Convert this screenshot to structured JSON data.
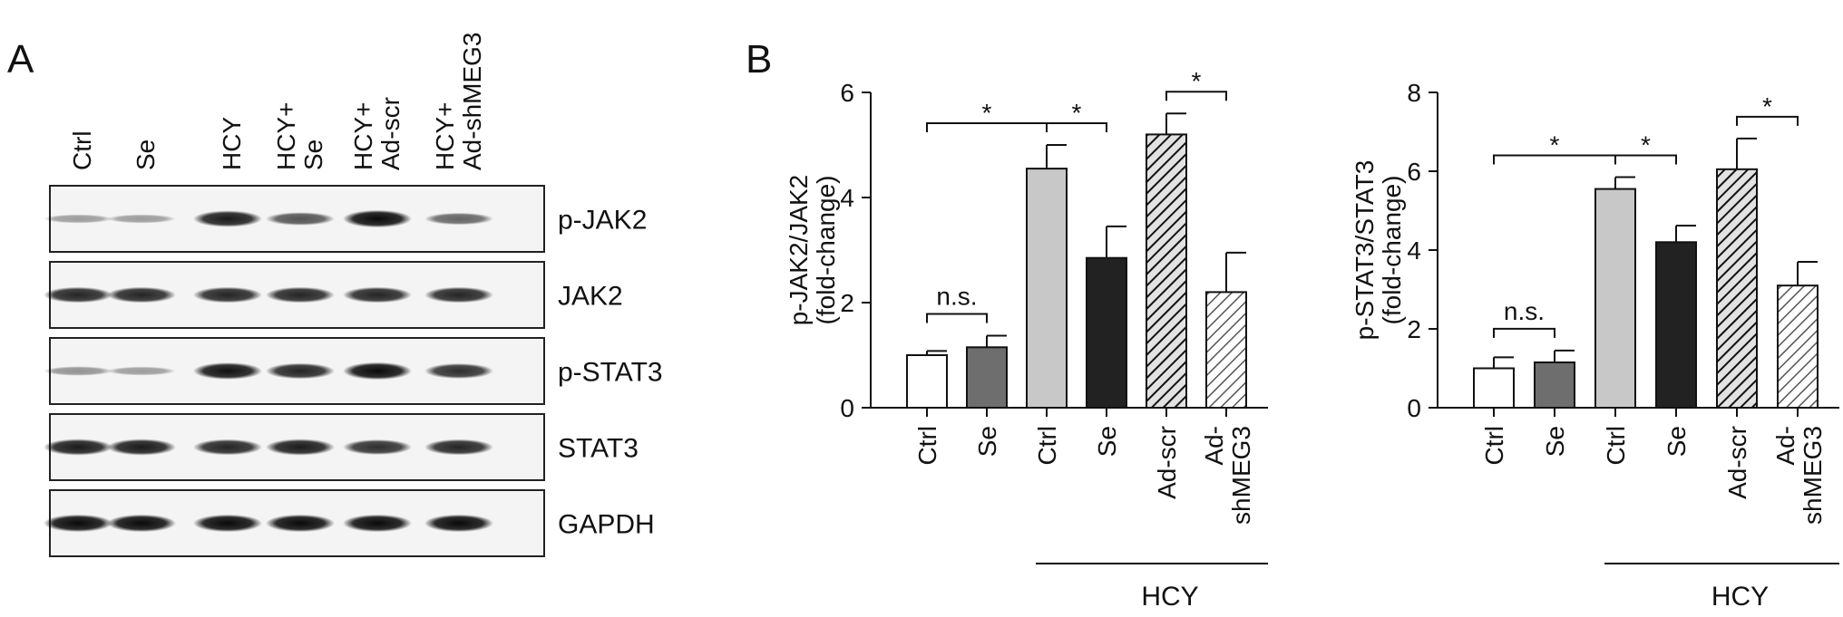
{
  "panel_a": {
    "label": "A",
    "lanes": [
      "Ctrl",
      "Se",
      "HCY",
      "HCY+\nSe",
      "HCY+\nAd-scr",
      "HCY+\nAd-shMEG3"
    ],
    "blots": [
      {
        "label": "p-JAK2",
        "intensities": [
          0.15,
          0.15,
          0.85,
          0.55,
          0.95,
          0.45
        ]
      },
      {
        "label": "JAK2",
        "intensities": [
          0.8,
          0.8,
          0.8,
          0.8,
          0.8,
          0.8
        ]
      },
      {
        "label": "p-STAT3",
        "intensities": [
          0.2,
          0.15,
          0.9,
          0.8,
          0.95,
          0.75
        ]
      },
      {
        "label": "STAT3",
        "intensities": [
          0.85,
          0.85,
          0.8,
          0.85,
          0.75,
          0.8
        ]
      },
      {
        "label": "GAPDH",
        "intensities": [
          0.95,
          0.95,
          0.95,
          0.95,
          0.95,
          0.95
        ]
      }
    ]
  },
  "panel_b_label": "B",
  "chart_data": [
    {
      "type": "bar",
      "ylabel": "p-JAK2/JAK2\n(fold-change)",
      "ylim": [
        0,
        6
      ],
      "yticks": [
        0,
        2,
        4,
        6
      ],
      "categories": [
        "Ctrl",
        "Se",
        "Ctrl",
        "Se",
        "Ad-scr",
        "Ad-\nshMEG3"
      ],
      "values": [
        1.0,
        1.15,
        4.55,
        2.85,
        5.2,
        2.2
      ],
      "errors": [
        0.08,
        0.22,
        0.45,
        0.6,
        0.4,
        0.75
      ],
      "fills": [
        "#ffffff",
        "#6e6e6e",
        "#c8c8c8",
        "#222222",
        "hatch",
        "hatch-light"
      ],
      "group_label": "HCY",
      "group_range": [
        2,
        5
      ],
      "brackets": [
        {
          "from": 0,
          "to": 1,
          "text": "n.s."
        },
        {
          "from": 0,
          "to": 2,
          "text": "*"
        },
        {
          "from": 2,
          "to": 3,
          "text": "*"
        },
        {
          "from": 4,
          "to": 5,
          "text": "*"
        }
      ]
    },
    {
      "type": "bar",
      "ylabel": "p-STAT3/STAT3\n(fold-change)",
      "ylim": [
        0,
        8
      ],
      "yticks": [
        0,
        2,
        4,
        6,
        8
      ],
      "categories": [
        "Ctrl",
        "Se",
        "Ctrl",
        "Se",
        "Ad-scr",
        "Ad-\nshMEG3"
      ],
      "values": [
        1.0,
        1.15,
        5.55,
        4.2,
        6.05,
        3.1
      ],
      "errors": [
        0.28,
        0.3,
        0.3,
        0.42,
        0.78,
        0.6
      ],
      "fills": [
        "#ffffff",
        "#6e6e6e",
        "#c8c8c8",
        "#222222",
        "hatch",
        "hatch-light"
      ],
      "group_label": "HCY",
      "group_range": [
        2,
        5
      ],
      "brackets": [
        {
          "from": 0,
          "to": 1,
          "text": "n.s."
        },
        {
          "from": 0,
          "to": 2,
          "text": "*"
        },
        {
          "from": 2,
          "to": 3,
          "text": "*"
        },
        {
          "from": 4,
          "to": 5,
          "text": "*"
        }
      ]
    }
  ]
}
